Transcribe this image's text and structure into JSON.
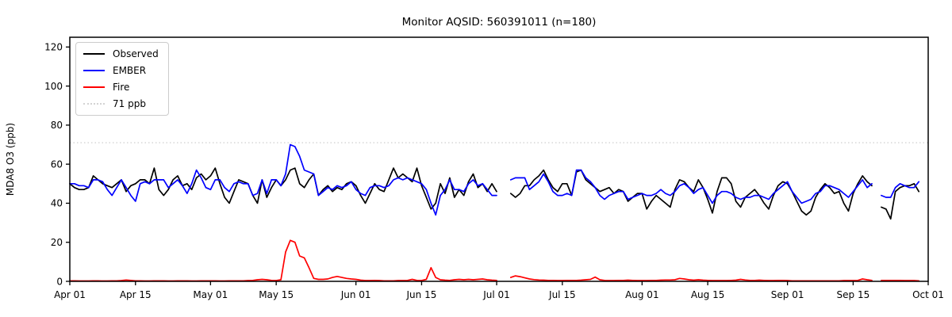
{
  "title": "Monitor AQSID: 560391011 (n=180)",
  "colors": {
    "observed": "#000000",
    "ember": "#0000ff",
    "fire": "#ff0000",
    "threshold": "#d3d3d3",
    "axis": "#000000",
    "background": "#ffffff"
  },
  "legend": {
    "items": [
      {
        "label": "Observed",
        "color": "#000000",
        "style": "solid"
      },
      {
        "label": "EMBER",
        "color": "#0000ff",
        "style": "solid"
      },
      {
        "label": "Fire",
        "color": "#ff0000",
        "style": "solid"
      },
      {
        "label": "71 ppb",
        "color": "#d3d3d3",
        "style": "dotted"
      }
    ]
  },
  "chart_data": {
    "type": "line",
    "title": "Monitor AQSID: 560391011 (n=180)",
    "xlabel": "",
    "ylabel": "MDA8 O3 (ppb)",
    "ylim": [
      0,
      125
    ],
    "yticks": [
      0,
      20,
      40,
      60,
      80,
      100,
      120
    ],
    "grid": false,
    "legend_position": "upper left",
    "threshold_ppb": 71,
    "x_start_label": "Apr 01",
    "x_total_days": 183,
    "xticks": [
      {
        "label": "Apr 01",
        "day": 0
      },
      {
        "label": "Apr 15",
        "day": 14
      },
      {
        "label": "May 01",
        "day": 30
      },
      {
        "label": "May 15",
        "day": 44
      },
      {
        "label": "Jun 01",
        "day": 61
      },
      {
        "label": "Jun 15",
        "day": 75
      },
      {
        "label": "Jul 01",
        "day": 91
      },
      {
        "label": "Jul 15",
        "day": 105
      },
      {
        "label": "Aug 01",
        "day": 122
      },
      {
        "label": "Aug 15",
        "day": 136
      },
      {
        "label": "Sep 01",
        "day": 153
      },
      {
        "label": "Sep 15",
        "day": 167
      },
      {
        "label": "Oct 01",
        "day": 183
      }
    ],
    "series": [
      {
        "name": "Observed",
        "color": "#000000",
        "values": [
          50,
          48,
          47,
          47,
          48,
          54,
          52,
          50,
          49,
          48,
          50,
          52,
          46,
          49,
          50,
          52,
          52,
          50,
          58,
          47,
          44,
          47,
          52,
          54,
          49,
          50,
          47,
          53,
          55,
          52,
          54,
          58,
          50,
          43,
          40,
          46,
          52,
          51,
          50,
          44,
          40,
          52,
          43,
          48,
          52,
          49,
          52,
          57,
          58,
          50,
          48,
          52,
          55,
          44,
          47,
          49,
          46,
          48,
          47,
          50,
          51,
          49,
          44,
          40,
          45,
          50,
          47,
          46,
          52,
          58,
          53,
          55,
          53,
          51,
          58,
          49,
          43,
          37,
          40,
          50,
          45,
          53,
          43,
          47,
          44,
          51,
          55,
          48,
          50,
          46,
          50,
          46,
          null,
          null,
          45,
          43,
          45,
          49,
          49,
          52,
          54,
          57,
          52,
          48,
          46,
          50,
          50,
          44,
          56,
          57,
          52,
          50,
          48,
          46,
          47,
          48,
          45,
          47,
          46,
          41,
          43,
          45,
          45,
          37,
          41,
          44,
          42,
          40,
          38,
          47,
          52,
          51,
          48,
          46,
          52,
          48,
          42,
          35,
          46,
          53,
          53,
          50,
          41,
          38,
          43,
          45,
          47,
          44,
          40,
          37,
          44,
          49,
          51,
          50,
          46,
          41,
          36,
          34,
          36,
          43,
          47,
          50,
          48,
          45,
          46,
          40,
          36,
          45,
          50,
          54,
          51,
          49,
          null,
          38,
          37,
          32,
          46,
          48,
          49,
          49,
          50,
          46
        ]
      },
      {
        "name": "EMBER",
        "color": "#0000ff",
        "values": [
          50,
          50,
          49,
          49,
          48,
          52,
          52,
          51,
          47,
          44,
          48,
          52,
          48,
          44,
          41,
          50,
          51,
          50,
          52,
          52,
          52,
          48,
          50,
          52,
          49,
          45,
          50,
          57,
          53,
          48,
          47,
          52,
          52,
          48,
          46,
          50,
          51,
          50,
          50,
          44,
          45,
          52,
          45,
          52,
          52,
          49,
          55,
          70,
          69,
          64,
          57,
          56,
          55,
          44,
          46,
          48,
          47,
          49,
          48,
          49,
          51,
          47,
          45,
          44,
          48,
          49,
          49,
          48,
          49,
          52,
          53,
          52,
          53,
          52,
          51,
          50,
          47,
          40,
          34,
          44,
          47,
          52,
          47,
          47,
          46,
          50,
          52,
          49,
          50,
          47,
          44,
          44,
          null,
          null,
          52,
          53,
          53,
          53,
          47,
          49,
          51,
          55,
          51,
          46,
          44,
          44,
          45,
          44,
          57,
          57,
          53,
          51,
          48,
          44,
          42,
          44,
          45,
          46,
          46,
          42,
          43,
          44,
          45,
          44,
          44,
          45,
          47,
          45,
          44,
          46,
          49,
          50,
          48,
          45,
          47,
          48,
          44,
          40,
          44,
          46,
          46,
          45,
          43,
          42,
          43,
          43,
          44,
          44,
          43,
          42,
          45,
          47,
          49,
          51,
          46,
          43,
          40,
          41,
          42,
          45,
          46,
          49,
          49,
          48,
          47,
          45,
          43,
          46,
          49,
          52,
          48,
          50,
          null,
          44,
          43,
          43,
          48,
          50,
          49,
          48,
          48,
          51
        ]
      },
      {
        "name": "Fire",
        "color": "#ff0000",
        "values": [
          0.3,
          0.3,
          0.2,
          0.2,
          0.2,
          0.3,
          0.3,
          0.2,
          0.2,
          0.3,
          0.3,
          0.4,
          0.7,
          0.5,
          0.3,
          0.3,
          0.2,
          0.2,
          0.3,
          0.3,
          0.3,
          0.2,
          0.2,
          0.3,
          0.3,
          0.3,
          0.2,
          0.2,
          0.3,
          0.3,
          0.3,
          0.3,
          0.2,
          0.2,
          0.3,
          0.3,
          0.3,
          0.3,
          0.4,
          0.5,
          0.8,
          1.0,
          0.8,
          0.5,
          0.4,
          0.8,
          15,
          21,
          20,
          13,
          12,
          7,
          1.5,
          1.0,
          1.0,
          1.2,
          2.0,
          2.5,
          2.0,
          1.5,
          1.2,
          1.0,
          0.6,
          0.4,
          0.4,
          0.5,
          0.4,
          0.3,
          0.3,
          0.3,
          0.4,
          0.4,
          0.5,
          1.0,
          0.5,
          0.4,
          1.0,
          7.0,
          2.0,
          0.8,
          0.6,
          0.5,
          0.8,
          1.0,
          0.8,
          1.0,
          0.8,
          1.0,
          1.2,
          0.8,
          0.6,
          0.5,
          null,
          null,
          2.0,
          2.8,
          2.4,
          1.8,
          1.2,
          0.9,
          0.7,
          0.6,
          0.5,
          0.5,
          0.4,
          0.4,
          0.5,
          0.5,
          0.5,
          0.6,
          0.8,
          1.0,
          2.2,
          0.8,
          0.5,
          0.4,
          0.4,
          0.5,
          0.5,
          0.6,
          0.5,
          0.4,
          0.4,
          0.4,
          0.5,
          0.5,
          0.6,
          0.7,
          0.7,
          0.8,
          1.5,
          1.2,
          0.8,
          0.6,
          0.8,
          0.6,
          0.5,
          0.4,
          0.4,
          0.4,
          0.4,
          0.5,
          0.6,
          1.0,
          0.7,
          0.5,
          0.5,
          0.6,
          0.5,
          0.4,
          0.4,
          0.5,
          0.5,
          0.4,
          0.3,
          0.3,
          0.3,
          0.3,
          0.3,
          0.3,
          0.3,
          0.3,
          0.3,
          0.3,
          0.3,
          0.4,
          0.4,
          0.4,
          0.5,
          1.2,
          0.8,
          0.5,
          null,
          0.5,
          0.5,
          0.5,
          0.5,
          0.5,
          0.4,
          0.4,
          0.4,
          0.3
        ]
      }
    ]
  }
}
